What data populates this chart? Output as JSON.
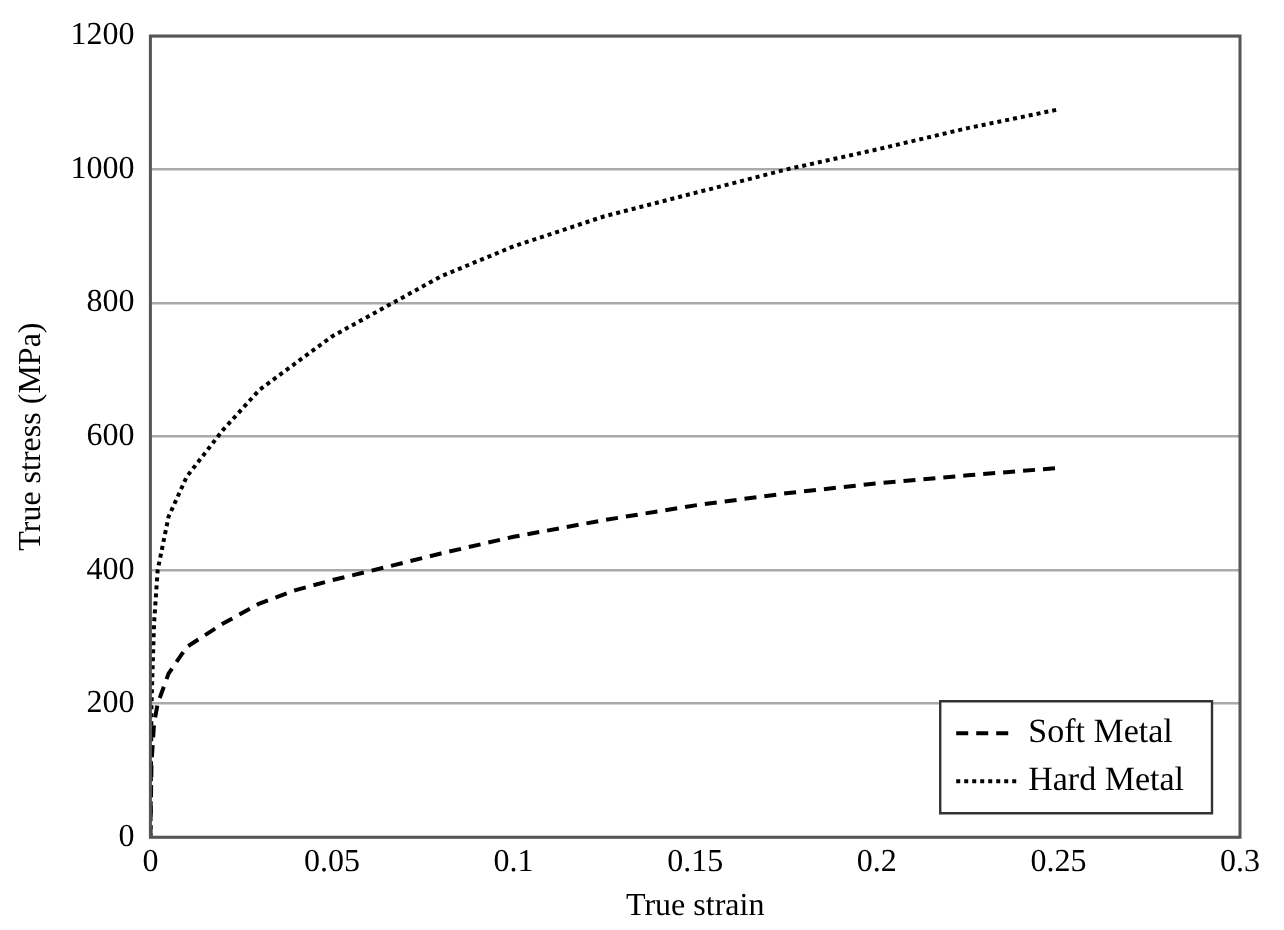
{
  "chart_data": {
    "type": "line",
    "xlabel": "True strain",
    "ylabel": "True stress (MPa)",
    "xlim": [
      0,
      0.3
    ],
    "xticks": [
      0,
      0.05,
      0.1,
      0.15,
      0.2,
      0.25,
      0.3
    ],
    "ylim": [
      0,
      1200
    ],
    "yticks": [
      0,
      200,
      400,
      600,
      800,
      1000,
      1200
    ],
    "grid": "y",
    "legend": "bottom right",
    "marker": "none",
    "series": [
      {
        "name": "Soft Metal",
        "color": "#000000",
        "line_style": "dashed",
        "x": [
          0,
          0.0003,
          0.001,
          0.002,
          0.005,
          0.01,
          0.02,
          0.03,
          0.04,
          0.05,
          0.06,
          0.08,
          0.1,
          0.125,
          0.15,
          0.175,
          0.2,
          0.225,
          0.25
        ],
        "values": [
          0,
          110,
          170,
          200,
          245,
          285,
          320,
          350,
          370,
          385,
          398,
          425,
          450,
          475,
          497,
          515,
          530,
          542,
          553
        ]
      },
      {
        "name": "Hard Metal",
        "color": "#000000",
        "line_style": "dotted",
        "x": [
          0,
          0.0003,
          0.001,
          0.002,
          0.005,
          0.01,
          0.02,
          0.03,
          0.04,
          0.05,
          0.065,
          0.08,
          0.1,
          0.125,
          0.15,
          0.175,
          0.2,
          0.225,
          0.25
        ],
        "values": [
          0,
          200,
          320,
          400,
          480,
          540,
          610,
          670,
          710,
          750,
          795,
          840,
          885,
          930,
          965,
          1000,
          1030,
          1062,
          1090
        ]
      }
    ]
  }
}
